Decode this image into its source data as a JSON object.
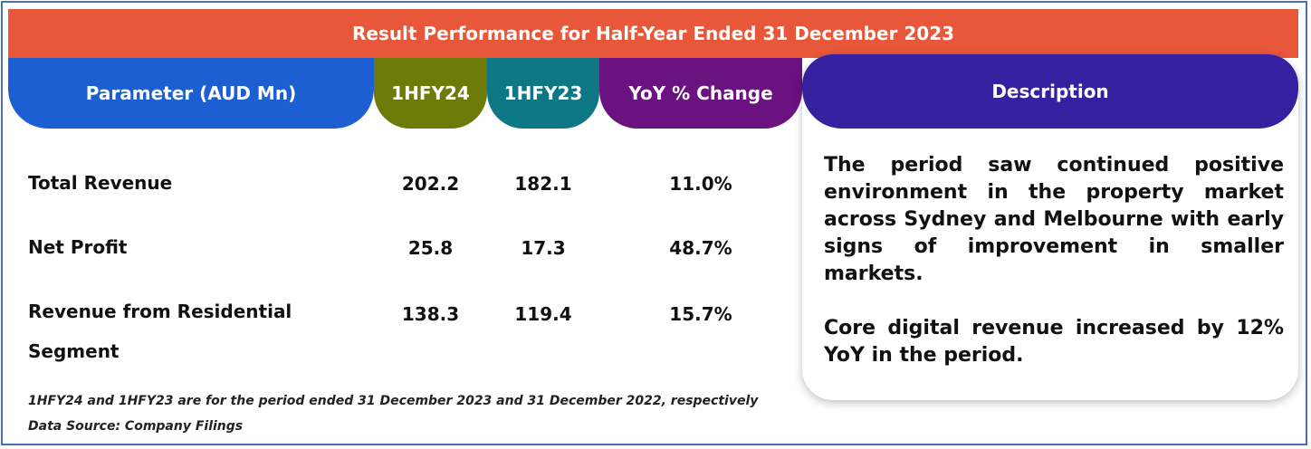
{
  "title": "Result Performance for Half-Year Ended 31 December 2023",
  "headers": {
    "parameter": "Parameter (AUD Mn)",
    "h1fy24": "1HFY24",
    "h1fy23": "1HFY23",
    "yoy": "YoY % Change",
    "description": "Description"
  },
  "rows": [
    {
      "name": "Total Revenue",
      "h1fy24": "202.2",
      "h1fy23": "182.1",
      "yoy": "11.0%"
    },
    {
      "name": "Net Profit",
      "h1fy24": "25.8",
      "h1fy23": "17.3",
      "yoy": "48.7%"
    },
    {
      "name": "Revenue from Residential Segment",
      "h1fy24": "138.3",
      "h1fy23": "119.4",
      "yoy": "15.7%"
    }
  ],
  "description": {
    "paragraph1": "The period saw continued positive environment in the property market across Sydney and Melbourne with early signs of improvement in smaller markets.",
    "paragraph2": "Core digital revenue increased by 12% YoY in the period."
  },
  "footnotes": {
    "period_note": "1HFY24 and 1HFY23 are for the period ended 31 December 2023 and 31 December 2022, respectively",
    "source": "Data Source: Company Filings"
  },
  "colors": {
    "banner": "#e9573a",
    "parameter_header": "#1c5fd2",
    "h1fy24_header": "#6e7a08",
    "h1fy23_header": "#0e7785",
    "yoy_header": "#6a127f",
    "description_header": "#3520a0"
  }
}
